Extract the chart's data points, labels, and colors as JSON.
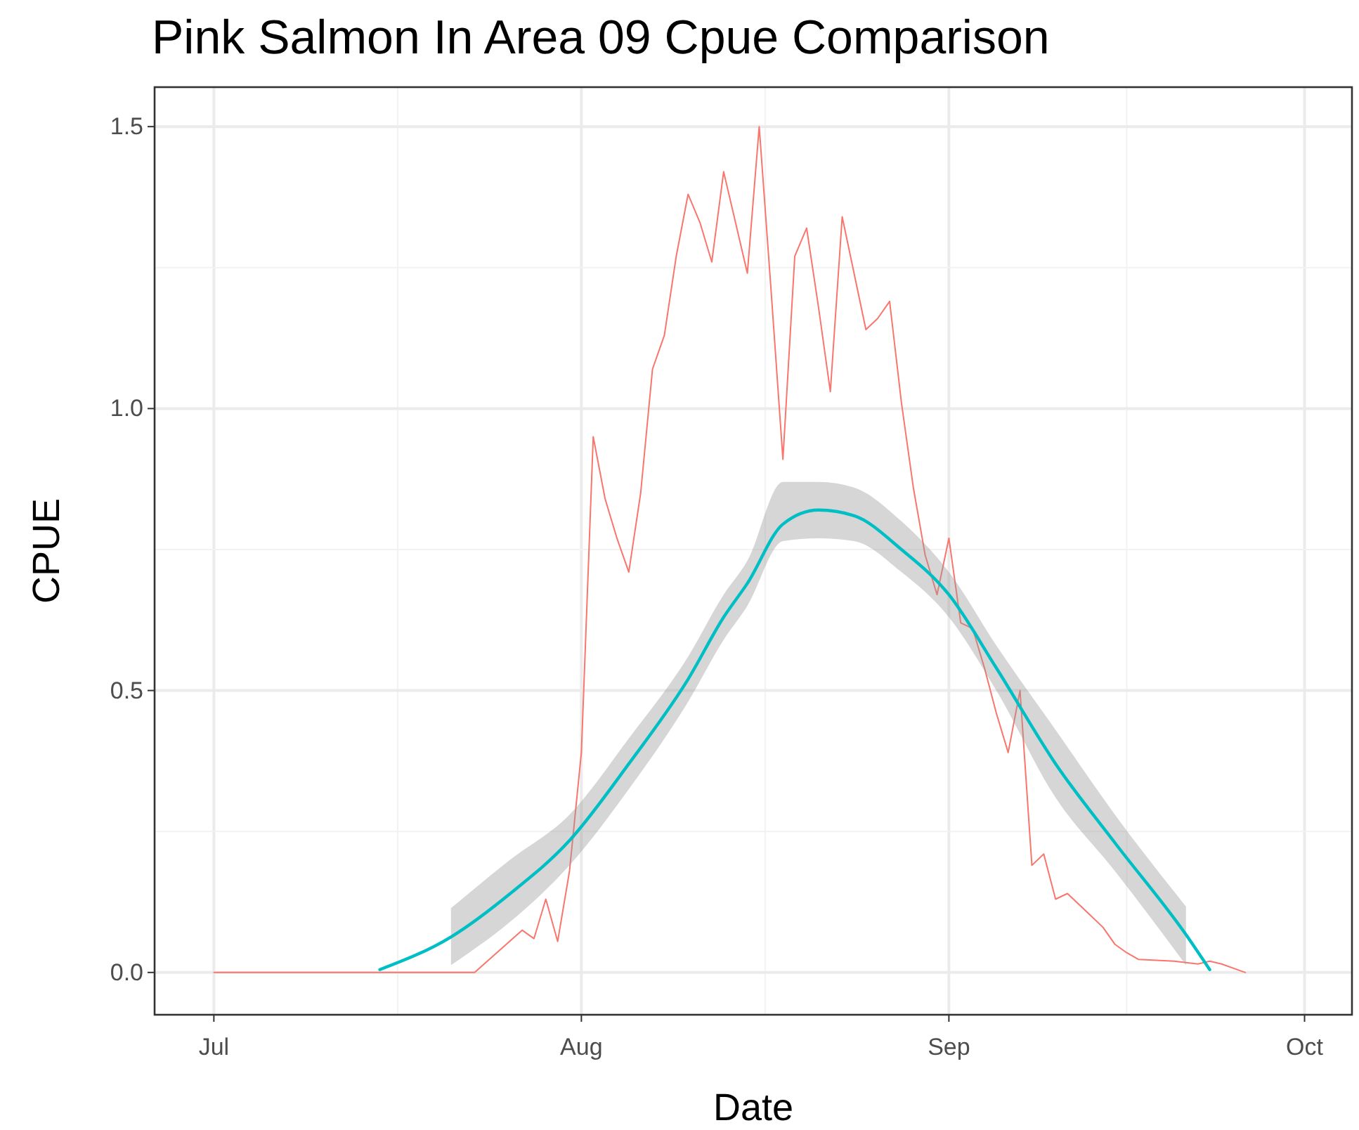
{
  "chart_data": {
    "type": "line",
    "title": "Pink Salmon In Area 09 Cpue Comparison",
    "xlabel": "Date",
    "ylabel": "CPUE",
    "xlim": [
      "--06-26",
      "--10-05"
    ],
    "xticks": [
      {
        "value": "--07-01",
        "label": "Jul"
      },
      {
        "value": "--08-01",
        "label": "Aug"
      },
      {
        "value": "--09-01",
        "label": "Sep"
      },
      {
        "value": "--10-01",
        "label": "Oct"
      }
    ],
    "ylim": [
      -0.075,
      1.57
    ],
    "yticks": [
      {
        "value": 0,
        "label": "0.0"
      },
      {
        "value": 0.5,
        "label": "0.5"
      },
      {
        "value": 1,
        "label": "1.0"
      },
      {
        "value": 1.5,
        "label": "1.5"
      }
    ],
    "grid": true,
    "series": [
      {
        "color": "#f8766d",
        "x": [
          "--07-01",
          "--07-23",
          "--07-27",
          "--07-28",
          "--07-29",
          "--07-30",
          "--07-31",
          "--08-01",
          "--08-02",
          "--08-03",
          "--08-04",
          "--08-05",
          "--08-06",
          "--08-07",
          "--08-08",
          "--08-09",
          "--08-10",
          "--08-11",
          "--08-12",
          "--08-13",
          "--08-14",
          "--08-15",
          "--08-16",
          "--08-17",
          "--08-18",
          "--08-19",
          "--08-20",
          "--08-21",
          "--08-22",
          "--08-23",
          "--08-24",
          "--08-25",
          "--08-26",
          "--08-27",
          "--08-28",
          "--08-29",
          "--08-30",
          "--08-31",
          "--09-01",
          "--09-02",
          "--09-03",
          "--09-04",
          "--09-05",
          "--09-06",
          "--09-07",
          "--09-08",
          "--09-09",
          "--09-10",
          "--09-11",
          "--09-12",
          "--09-13",
          "--09-14",
          "--09-15",
          "--09-16",
          "--09-17",
          "--09-20",
          "--09-22",
          "--09-23",
          "--09-24",
          "--09-26"
        ],
        "values": [
          0,
          0,
          0.075,
          0.06,
          0.13,
          0.055,
          0.18,
          0.39,
          0.95,
          0.84,
          0.77,
          0.71,
          0.85,
          1.07,
          1.13,
          1.27,
          1.38,
          1.33,
          1.26,
          1.42,
          1.33,
          1.24,
          1.5,
          1.21,
          0.91,
          1.27,
          1.32,
          1.18,
          1.03,
          1.34,
          1.24,
          1.14,
          1.16,
          1.19,
          1.01,
          0.86,
          0.74,
          0.67,
          0.77,
          0.62,
          0.61,
          0.54,
          0.46,
          0.39,
          0.5,
          0.19,
          0.21,
          0.13,
          0.14,
          0.12,
          0.1,
          0.08,
          0.05,
          0.035,
          0.023,
          0.02,
          0.015,
          0.02,
          0.015,
          0
        ]
      },
      {
        "color": "#00bfc4",
        "x": [
          "--07-15",
          "--07-21",
          "--07-26",
          "--07-31",
          "--08-05",
          "--08-10",
          "--08-13",
          "--08-15",
          "--08-18",
          "--08-21",
          "--08-24",
          "--08-28",
          "--09-01",
          "--09-05",
          "--09-10",
          "--09-15",
          "--09-21",
          "--09-23"
        ],
        "values": [
          0.005,
          0.063,
          0.14,
          0.234,
          0.37,
          0.52,
          0.63,
          0.69,
          0.795,
          0.82,
          0.81,
          0.75,
          0.67,
          0.54,
          0.37,
          0.23,
          0.067,
          0.005
        ],
        "lower": [
          null,
          0.013,
          0.09,
          0.19,
          0.325,
          0.48,
          0.59,
          0.65,
          0.765,
          0.77,
          0.765,
          0.71,
          0.63,
          0.5,
          0.31,
          0.18,
          0.013,
          null
        ],
        "upper": [
          null,
          0.114,
          0.2,
          0.28,
          0.415,
          0.56,
          0.67,
          0.73,
          0.87,
          0.87,
          0.86,
          0.8,
          0.71,
          0.58,
          0.43,
          0.28,
          0.117,
          null
        ]
      }
    ]
  }
}
